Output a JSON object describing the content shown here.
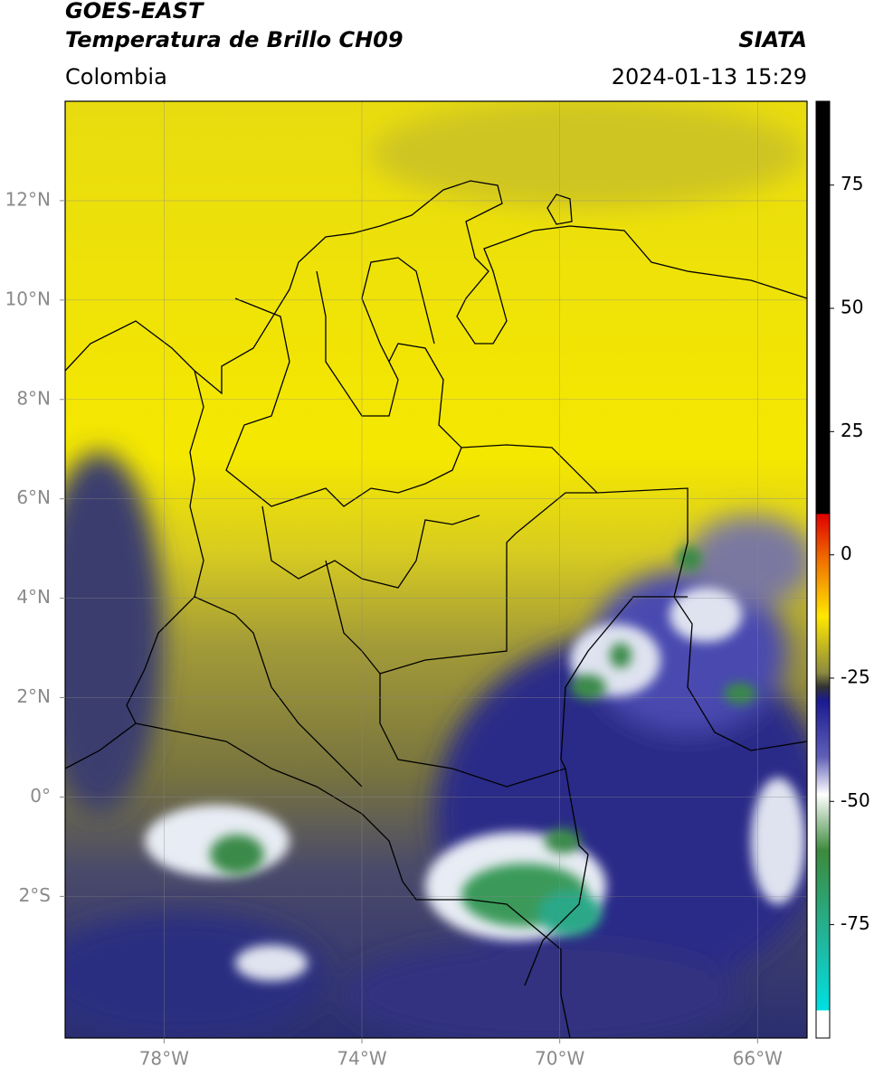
{
  "header": {
    "title_line1": "GOES-EAST",
    "title_line2": "Temperatura de Brillo CH09",
    "source": "SIATA",
    "region": "Colombia",
    "timestamp": "2024-01-13 15:29"
  },
  "map": {
    "xlim": [
      -80,
      -65
    ],
    "ylim": [
      -4.85,
      14
    ],
    "xticks": [
      {
        "value": -78,
        "label": "78°W"
      },
      {
        "value": -74,
        "label": "74°W"
      },
      {
        "value": -70,
        "label": "70°W"
      },
      {
        "value": -66,
        "label": "66°W"
      }
    ],
    "yticks": [
      {
        "value": 12,
        "label": "12°N"
      },
      {
        "value": 10,
        "label": "10°N"
      },
      {
        "value": 8,
        "label": "8°N"
      },
      {
        "value": 6,
        "label": "6°N"
      },
      {
        "value": 4,
        "label": "4°N"
      },
      {
        "value": 2,
        "label": "2°N"
      },
      {
        "value": 0,
        "label": "0°"
      },
      {
        "value": -2,
        "label": "2°S"
      }
    ],
    "grid": true
  },
  "colorbar": {
    "lim": [
      -98,
      92
    ],
    "ticks": [
      75,
      50,
      25,
      0,
      -25,
      -50,
      -75
    ]
  }
}
